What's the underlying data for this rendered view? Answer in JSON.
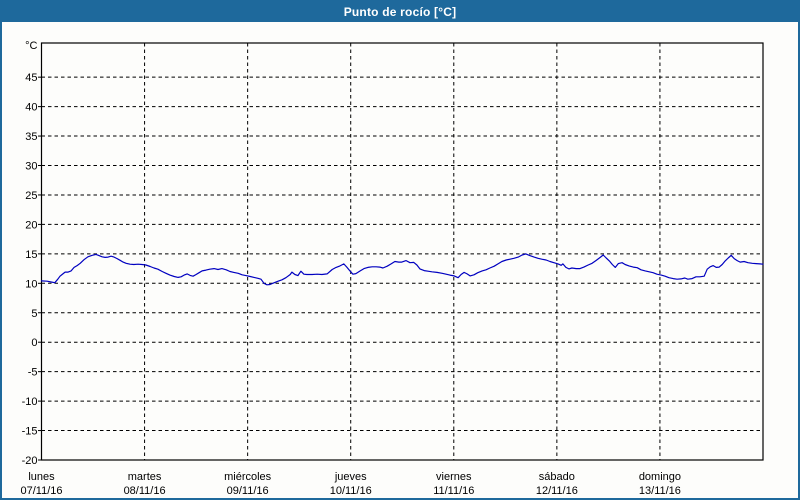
{
  "window": {
    "title": "Punto de rocío [°C]"
  },
  "colors": {
    "frame": "#1e699c",
    "titlebar_bg": "#1e699c",
    "title_text": "#ffffff",
    "plot_bg": "#fdfdfb",
    "axis": "#000000",
    "grid": "#000000",
    "label_text": "#000000",
    "series": "#0000c0"
  },
  "chart_data": {
    "type": "line",
    "title": "Punto de rocío [°C]",
    "unit_label": "°C",
    "ylim": [
      -20,
      50.8
    ],
    "yticks": [
      45,
      40,
      35,
      30,
      25,
      20,
      15,
      10,
      5,
      0,
      -5,
      -10,
      -15,
      -20
    ],
    "x_range_hours": 168,
    "grid": "dashed",
    "legend": "none",
    "x_categories": [
      {
        "day": "lunes",
        "date": "07/11/16"
      },
      {
        "day": "martes",
        "date": "08/11/16"
      },
      {
        "day": "miércoles",
        "date": "09/11/16"
      },
      {
        "day": "jueves",
        "date": "10/11/16"
      },
      {
        "day": "viernes",
        "date": "11/11/16"
      },
      {
        "day": "sábado",
        "date": "12/11/16"
      },
      {
        "day": "domingo",
        "date": "13/11/16"
      }
    ],
    "series": [
      {
        "name": "Punto de rocío",
        "color": "#0000c0",
        "points": [
          [
            0,
            10.4
          ],
          [
            1.3,
            10.35
          ],
          [
            2.4,
            10.2
          ],
          [
            3.1,
            10.1
          ],
          [
            3.8,
            10.7
          ],
          [
            4.3,
            11.2
          ],
          [
            4.8,
            11.5
          ],
          [
            5.5,
            11.9
          ],
          [
            6.2,
            11.9
          ],
          [
            6.9,
            12.1
          ],
          [
            7.6,
            12.7
          ],
          [
            8.3,
            13.0
          ],
          [
            9,
            13.4
          ],
          [
            9.9,
            14.0
          ],
          [
            10.8,
            14.5
          ],
          [
            11.8,
            14.75
          ],
          [
            12.7,
            14.9
          ],
          [
            13.4,
            14.7
          ],
          [
            14.1,
            14.5
          ],
          [
            14.8,
            14.4
          ],
          [
            15.5,
            14.45
          ],
          [
            16.2,
            14.6
          ],
          [
            16.9,
            14.45
          ],
          [
            17.6,
            14.2
          ],
          [
            18.3,
            13.9
          ],
          [
            19,
            13.6
          ],
          [
            19.7,
            13.4
          ],
          [
            20.6,
            13.25
          ],
          [
            21.5,
            13.2
          ],
          [
            22.5,
            13.25
          ],
          [
            23.4,
            13.2
          ],
          [
            24.3,
            13.1
          ],
          [
            25.3,
            12.85
          ],
          [
            26.2,
            12.6
          ],
          [
            27.1,
            12.4
          ],
          [
            28.1,
            12.0
          ],
          [
            29,
            11.7
          ],
          [
            29.9,
            11.4
          ],
          [
            30.9,
            11.15
          ],
          [
            31.8,
            11.0
          ],
          [
            32.5,
            11.1
          ],
          [
            33.2,
            11.4
          ],
          [
            33.9,
            11.6
          ],
          [
            34.6,
            11.35
          ],
          [
            35.3,
            11.2
          ],
          [
            36,
            11.5
          ],
          [
            36.7,
            11.8
          ],
          [
            37.4,
            12.1
          ],
          [
            38.3,
            12.25
          ],
          [
            39.2,
            12.4
          ],
          [
            40.2,
            12.5
          ],
          [
            41.1,
            12.35
          ],
          [
            42,
            12.5
          ],
          [
            43,
            12.3
          ],
          [
            43.9,
            12.0
          ],
          [
            44.8,
            11.85
          ],
          [
            45.8,
            11.7
          ],
          [
            46.7,
            11.45
          ],
          [
            47.6,
            11.3
          ],
          [
            48.6,
            11.15
          ],
          [
            49.5,
            11.0
          ],
          [
            50.4,
            10.85
          ],
          [
            51.1,
            10.7
          ],
          [
            51.8,
            10.0
          ],
          [
            52.5,
            9.75
          ],
          [
            53.2,
            9.8
          ],
          [
            54.2,
            10.1
          ],
          [
            55.1,
            10.35
          ],
          [
            56,
            10.6
          ],
          [
            56.9,
            10.95
          ],
          [
            57.9,
            11.5
          ],
          [
            58.3,
            11.9
          ],
          [
            59,
            11.5
          ],
          [
            59.7,
            11.3
          ],
          [
            60.4,
            12.05
          ],
          [
            61.1,
            11.55
          ],
          [
            61.8,
            11.5
          ],
          [
            63,
            11.5
          ],
          [
            64.2,
            11.55
          ],
          [
            65.3,
            11.5
          ],
          [
            66.5,
            11.6
          ],
          [
            67.7,
            12.35
          ],
          [
            68.6,
            12.7
          ],
          [
            69.5,
            12.95
          ],
          [
            70.4,
            13.3
          ],
          [
            71.1,
            12.75
          ],
          [
            71.8,
            12.1
          ],
          [
            72.5,
            11.55
          ],
          [
            73.2,
            11.65
          ],
          [
            74.2,
            12.1
          ],
          [
            75.1,
            12.5
          ],
          [
            76,
            12.7
          ],
          [
            77,
            12.8
          ],
          [
            77.9,
            12.8
          ],
          [
            78.8,
            12.75
          ],
          [
            79.5,
            12.6
          ],
          [
            80.5,
            12.9
          ],
          [
            81.4,
            13.3
          ],
          [
            82.3,
            13.7
          ],
          [
            83.2,
            13.6
          ],
          [
            83.9,
            13.6
          ],
          [
            84.9,
            13.85
          ],
          [
            85.8,
            13.5
          ],
          [
            86.7,
            13.55
          ],
          [
            87.4,
            13.1
          ],
          [
            88.1,
            12.45
          ],
          [
            89.1,
            12.15
          ],
          [
            90,
            12.05
          ],
          [
            90.9,
            11.95
          ],
          [
            92.1,
            11.85
          ],
          [
            93.3,
            11.7
          ],
          [
            94.2,
            11.55
          ],
          [
            95.1,
            11.4
          ],
          [
            96.1,
            11.25
          ],
          [
            97,
            10.95
          ],
          [
            97.7,
            11.5
          ],
          [
            98.4,
            11.85
          ],
          [
            99.1,
            11.6
          ],
          [
            99.8,
            11.25
          ],
          [
            100.7,
            11.45
          ],
          [
            101.6,
            11.8
          ],
          [
            102.6,
            12.1
          ],
          [
            103.5,
            12.3
          ],
          [
            104.4,
            12.6
          ],
          [
            105.4,
            12.9
          ],
          [
            106.3,
            13.3
          ],
          [
            107.2,
            13.7
          ],
          [
            108.2,
            13.95
          ],
          [
            109.1,
            14.1
          ],
          [
            110,
            14.25
          ],
          [
            111,
            14.45
          ],
          [
            111.9,
            14.8
          ],
          [
            112.8,
            15.0
          ],
          [
            113.7,
            14.7
          ],
          [
            114.7,
            14.45
          ],
          [
            115.6,
            14.25
          ],
          [
            116.5,
            14.1
          ],
          [
            117.5,
            13.95
          ],
          [
            118.4,
            13.7
          ],
          [
            119.3,
            13.5
          ],
          [
            120.3,
            13.3
          ],
          [
            121,
            13.05
          ],
          [
            121.4,
            13.3
          ],
          [
            122.1,
            12.7
          ],
          [
            122.8,
            12.45
          ],
          [
            123.5,
            12.6
          ],
          [
            124.5,
            12.5
          ],
          [
            125.4,
            12.5
          ],
          [
            126.3,
            12.75
          ],
          [
            127.3,
            13.1
          ],
          [
            128.2,
            13.4
          ],
          [
            129.1,
            13.85
          ],
          [
            130.1,
            14.4
          ],
          [
            130.8,
            14.8
          ],
          [
            131.5,
            14.3
          ],
          [
            132.2,
            13.8
          ],
          [
            132.9,
            13.2
          ],
          [
            133.6,
            12.7
          ],
          [
            134.3,
            13.35
          ],
          [
            135.2,
            13.5
          ],
          [
            135.9,
            13.2
          ],
          [
            136.8,
            12.95
          ],
          [
            137.8,
            12.75
          ],
          [
            138.7,
            12.65
          ],
          [
            139.6,
            12.3
          ],
          [
            140.6,
            12.1
          ],
          [
            141.5,
            11.95
          ],
          [
            142.4,
            11.8
          ],
          [
            143.3,
            11.55
          ],
          [
            144.3,
            11.4
          ],
          [
            145.2,
            11.2
          ],
          [
            146.1,
            10.95
          ],
          [
            147.1,
            10.8
          ],
          [
            148,
            10.7
          ],
          [
            148.9,
            10.75
          ],
          [
            149.8,
            10.9
          ],
          [
            150.5,
            10.7
          ],
          [
            151.5,
            10.8
          ],
          [
            152.4,
            11.1
          ],
          [
            153.3,
            11.1
          ],
          [
            154.3,
            11.2
          ],
          [
            155,
            12.4
          ],
          [
            155.7,
            12.8
          ],
          [
            156.4,
            13.0
          ],
          [
            157.1,
            12.7
          ],
          [
            157.8,
            12.75
          ],
          [
            158.5,
            13.2
          ],
          [
            159.2,
            13.8
          ],
          [
            159.9,
            14.3
          ],
          [
            160.6,
            14.75
          ],
          [
            161.3,
            14.2
          ],
          [
            162,
            13.85
          ],
          [
            162.7,
            13.6
          ],
          [
            163.6,
            13.7
          ],
          [
            164.5,
            13.5
          ],
          [
            165.5,
            13.4
          ],
          [
            166.4,
            13.35
          ],
          [
            167.3,
            13.3
          ],
          [
            168,
            13.25
          ]
        ]
      }
    ]
  }
}
